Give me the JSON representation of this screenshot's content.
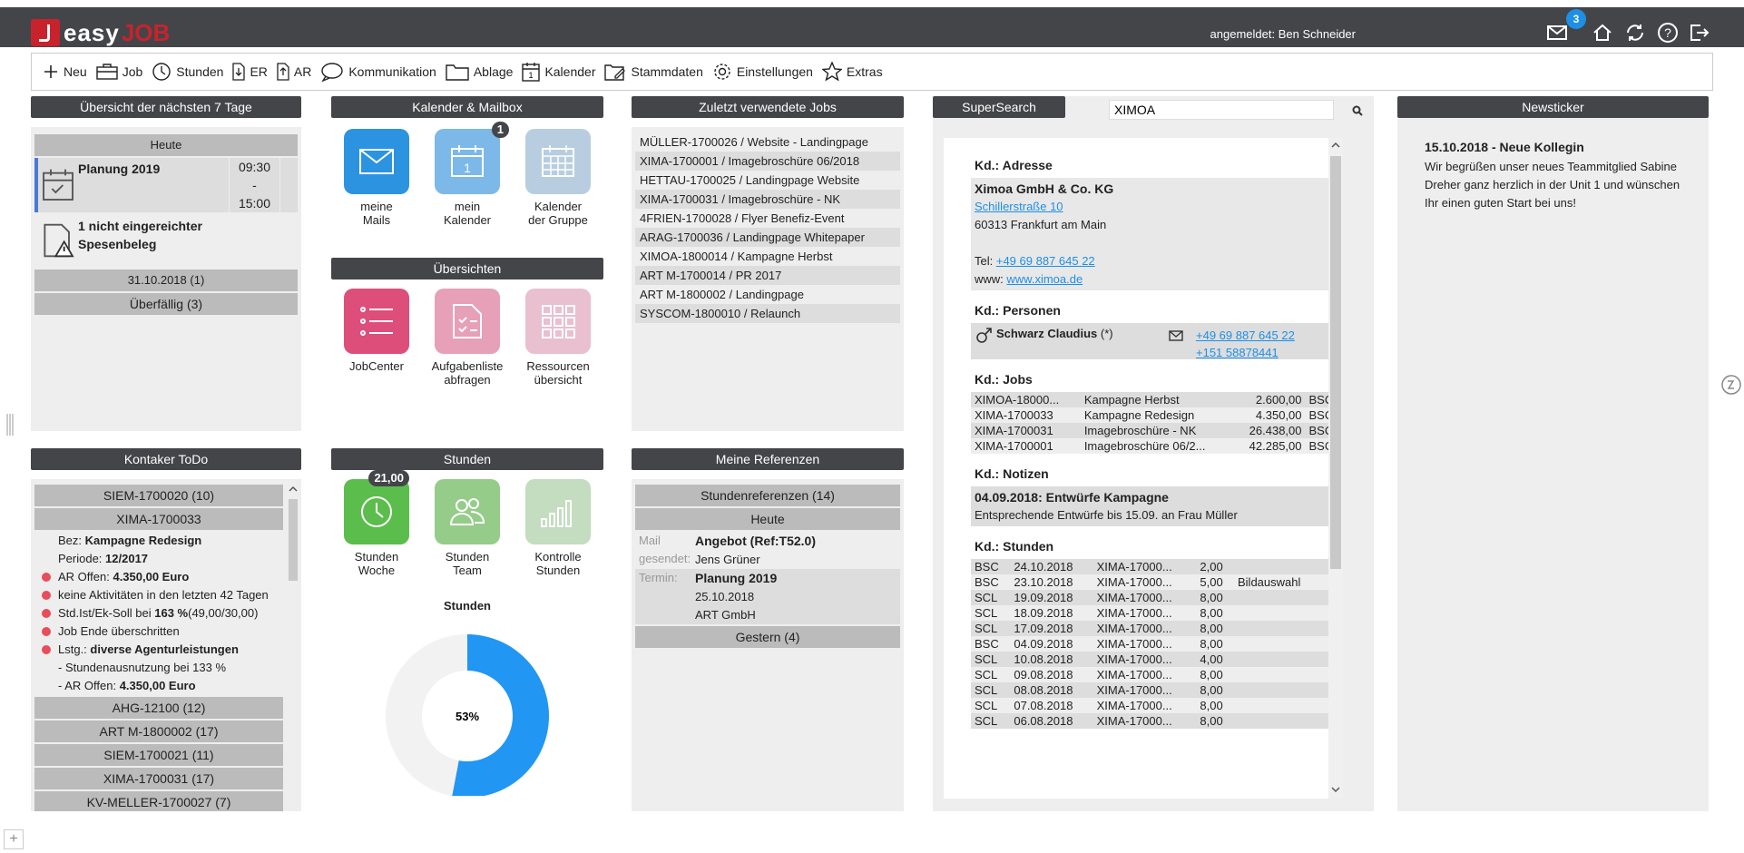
{
  "app": {
    "logo_text": "easy",
    "logo_text2": "JOB",
    "user": "angemeldet: Ben Schneider",
    "mail_badge": "3"
  },
  "toolbar": [
    {
      "label": "Neu",
      "icon": "plus-icon"
    },
    {
      "label": "Job",
      "icon": "briefcase-icon"
    },
    {
      "label": "Stunden",
      "icon": "clock-icon"
    },
    {
      "label": "ER",
      "icon": "incoming-invoice-icon"
    },
    {
      "label": "AR",
      "icon": "outgoing-invoice-icon"
    },
    {
      "label": "Kommunikation",
      "icon": "speech-bubble-icon"
    },
    {
      "label": "Ablage",
      "icon": "folder-icon"
    },
    {
      "label": "Kalender",
      "icon": "calendar-icon"
    },
    {
      "label": "Stammdaten",
      "icon": "master-data-icon"
    },
    {
      "label": "Einstellungen",
      "icon": "gear-icon"
    },
    {
      "label": "Extras",
      "icon": "star-icon"
    }
  ],
  "overview": {
    "title": "Übersicht der nächsten 7 Tage",
    "today": "Heute",
    "event1": {
      "title": "Planung 2019",
      "time1": "09:30",
      "dash": "-",
      "time2": "15:00"
    },
    "event2": {
      "title": "1 nicht eingereichter Spesenbeleg"
    },
    "date_group": "31.10.2018 (1)",
    "overdue": "Überfällig (3)"
  },
  "calendar": {
    "title": "Kalender & Mailbox",
    "apps": [
      {
        "label1": "meine",
        "label2": "Mails"
      },
      {
        "label1": "mein",
        "label2": "Kalender",
        "badge": "1",
        "day": "1"
      },
      {
        "label1": "Kalender",
        "label2": "der Gruppe"
      }
    ]
  },
  "overviews": {
    "title": "Übersichten",
    "apps": [
      {
        "label1": "JobCenter",
        "label2": ""
      },
      {
        "label1": "Aufgabenliste",
        "label2": "abfragen"
      },
      {
        "label1": "Ressourcen",
        "label2": "übersicht"
      }
    ]
  },
  "recent": {
    "title": "Zuletzt verwendete Jobs",
    "items": [
      "MÜLLER-1700026 / Website - Landingpage",
      "XIMA-1700001 / Imagebroschüre 06/2018",
      "HETTAU-1700025 / Landingpage Website",
      "XIMA-1700031 / Imagebroschüre - NK",
      "4FRIEN-1700028 / Flyer Benefiz-Event",
      "ARAG-1700036 / Landingpage Whitepaper",
      "XIMOA-1800014 / Kampagne Herbst",
      "ART M-1700014 / PR 2017",
      "ART M-1800002 / Landingpage",
      "SYSCOM-1800010 / Relaunch"
    ]
  },
  "supersearch": {
    "title": "SuperSearch",
    "query": "XIMOA",
    "address_label": "Kd.: Adresse",
    "company": "Ximoa GmbH & Co. KG",
    "street": "Schillerstraße 10",
    "city": "60313 Frankfurt am Main",
    "tel_label": "Tel:",
    "tel": "+49 69 887 645 22",
    "www_label": "www:",
    "www": "www.ximoa.de",
    "persons_label": "Kd.: Personen",
    "person_name": "Schwarz Claudius",
    "person_suffix": "(*)",
    "person_phone1": "+49 69 887 645 22",
    "person_phone2": "+151 58878441",
    "jobs_label": "Kd.: Jobs",
    "jobs": [
      [
        "XIMOA-18000...",
        "Kampagne Herbst",
        "2.600,00",
        "BSC"
      ],
      [
        "XIMA-1700033",
        "Kampagne Redesign",
        "4.350,00",
        "BSC"
      ],
      [
        "XIMA-1700031",
        "Imagebroschüre - NK",
        "26.438,00",
        "BSC"
      ],
      [
        "XIMA-1700001",
        "Imagebroschüre 06/2...",
        "42.285,00",
        "BSC"
      ]
    ],
    "notes_label": "Kd.: Notizen",
    "note_title": "04.09.2018: Entwürfe Kampagne",
    "note_text": "Entsprechende Entwürfe bis 15.09. an Frau Müller",
    "hours_label": "Kd.: Stunden",
    "hours": [
      [
        "BSC",
        "24.10.2018",
        "XIMA-17000...",
        "2,00",
        ""
      ],
      [
        "BSC",
        "23.10.2018",
        "XIMA-17000...",
        "5,00",
        "Bildauswahl"
      ],
      [
        "SCL",
        "19.09.2018",
        "XIMA-17000...",
        "8,00",
        ""
      ],
      [
        "SCL",
        "18.09.2018",
        "XIMA-17000...",
        "8,00",
        ""
      ],
      [
        "SCL",
        "17.09.2018",
        "XIMA-17000...",
        "8,00",
        ""
      ],
      [
        "BSC",
        "04.09.2018",
        "XIMA-17000...",
        "8,00",
        ""
      ],
      [
        "SCL",
        "10.08.2018",
        "XIMA-17000...",
        "4,00",
        ""
      ],
      [
        "SCL",
        "09.08.2018",
        "XIMA-17000...",
        "8,00",
        ""
      ],
      [
        "SCL",
        "08.08.2018",
        "XIMA-17000...",
        "8,00",
        ""
      ],
      [
        "SCL",
        "07.08.2018",
        "XIMA-17000...",
        "8,00",
        ""
      ],
      [
        "SCL",
        "06.08.2018",
        "XIMA-17000...",
        "8,00",
        ""
      ]
    ]
  },
  "newsticker": {
    "title": "Newsticker",
    "headline": "15.10.2018 - Neue Kollegin",
    "text": "Wir begrüßen unser neues Teammitglied Sabine Dreher ganz herzlich in der Unit 1 und wünschen Ihr einen guten Start bei uns!"
  },
  "todo": {
    "title": "Kontaker ToDo",
    "groups_top": [
      "SIEM-1700020 (10)",
      "XIMA-1700033"
    ],
    "bez_label": "Bez:",
    "bez": "Kampagne Redesign",
    "periode_label": "Periode:",
    "periode": "12/2017",
    "items": [
      {
        "pre": "AR Offen:",
        "bold": "4.350,00 Euro",
        "post": ""
      },
      {
        "pre": "keine Aktivitäten in den letzten 42 Tagen",
        "bold": "",
        "post": ""
      },
      {
        "pre": "Std.Ist/Ek-Soll bei",
        "bold": "163 %",
        "post": " (49,00/30,00)"
      },
      {
        "pre": "Job Ende überschritten",
        "bold": "",
        "post": ""
      },
      {
        "pre": "Lstg.:",
        "bold": "diverse Agenturleistungen",
        "post": ""
      }
    ],
    "sub1": "- Stundenausnutzung bei 133 %",
    "sub2_pre": "- AR Offen:",
    "sub2_bold": "4.350,00 Euro",
    "groups_bottom": [
      "AHG-12100 (12)",
      "ART M-1800002 (17)",
      "SIEM-1700021 (11)",
      "XIMA-1700031 (17)",
      "KV-MELLER-1700027 (7)"
    ]
  },
  "hours": {
    "title": "Stunden",
    "apps": [
      {
        "label1": "Stunden",
        "label2": "Woche",
        "badge": "21,00"
      },
      {
        "label1": "Stunden",
        "label2": "Team"
      },
      {
        "label1": "Kontrolle",
        "label2": "Stunden"
      }
    ],
    "chart_title": "Stunden"
  },
  "chart_data": {
    "type": "pie",
    "title": "Stunden",
    "values": [
      53,
      47
    ],
    "center_label": "53%",
    "colors": [
      "#2196f3",
      "#f2f2f2"
    ]
  },
  "refs": {
    "title": "Meine Referenzen",
    "group": "Stundenreferenzen (14)",
    "today": "Heute",
    "r1_l1": "Mail",
    "r1_l2": "gesendet:",
    "r1_title": "Angebot (Ref:T52.0)",
    "r1_sub": "Jens Grüner",
    "r2_l": "Termin:",
    "r2_title": "Planung 2019",
    "r2_date": "25.10.2018",
    "r2_company": "ART GmbH",
    "yesterday": "Gestern (4)"
  }
}
